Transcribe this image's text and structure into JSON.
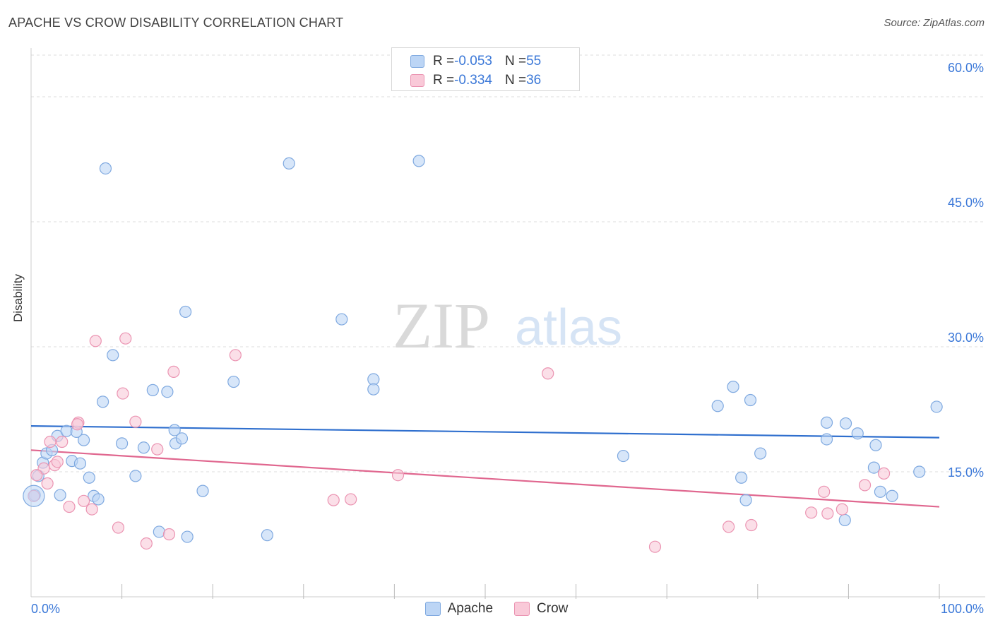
{
  "title": "APACHE VS CROW DISABILITY CORRELATION CHART",
  "source": "Source: ZipAtlas.com",
  "watermark": {
    "zip": "ZIP",
    "atlas": "atlas"
  },
  "legend_top": [
    {
      "r_label": "R = ",
      "r_value": "-0.053",
      "n_label": "N = ",
      "n_value": "55"
    },
    {
      "r_label": "R = ",
      "r_value": "-0.334",
      "n_label": "N = ",
      "n_value": "36"
    }
  ],
  "colors": {
    "apache_fill": "#bcd5f5",
    "apache_stroke": "#7fa9e0",
    "apache_line": "#2f6fce",
    "crow_fill": "#f9c9d8",
    "crow_stroke": "#eb94b2",
    "crow_line": "#e0678f",
    "axis_text": "#3b78d8",
    "grid": "#dddddd"
  },
  "chart_data": {
    "type": "scatter",
    "title": "APACHE VS CROW DISABILITY CORRELATION CHART",
    "xlabel": "",
    "ylabel": "Disability",
    "xlim": [
      0,
      100
    ],
    "ylim": [
      0,
      65
    ],
    "x_tick_labels": [
      "0.0%",
      "100.0%"
    ],
    "y_ticks": [
      15,
      30,
      45,
      60
    ],
    "y_tick_labels": [
      "15.0%",
      "30.0%",
      "45.0%",
      "60.0%"
    ],
    "series": [
      {
        "name": "Apache",
        "r": -0.053,
        "n": 55,
        "trend": {
          "x0": 0,
          "y0": 20.5,
          "x1": 100,
          "y1": 19.1
        },
        "points": [
          [
            8.2,
            51.4
          ],
          [
            28.4,
            52.0
          ],
          [
            42.7,
            52.3
          ],
          [
            17.0,
            34.2
          ],
          [
            34.2,
            33.3
          ],
          [
            9.0,
            29.0
          ],
          [
            13.4,
            24.8
          ],
          [
            15.0,
            24.6
          ],
          [
            22.3,
            25.8
          ],
          [
            37.7,
            26.1
          ],
          [
            37.7,
            24.9
          ],
          [
            7.9,
            23.4
          ],
          [
            77.3,
            25.2
          ],
          [
            75.6,
            22.9
          ],
          [
            79.2,
            23.6
          ],
          [
            1.3,
            16.1
          ],
          [
            1.7,
            17.2
          ],
          [
            2.3,
            17.6
          ],
          [
            2.9,
            19.3
          ],
          [
            3.9,
            19.9
          ],
          [
            5.0,
            19.8
          ],
          [
            5.8,
            18.8
          ],
          [
            4.5,
            16.3
          ],
          [
            5.4,
            16.0
          ],
          [
            6.4,
            14.3
          ],
          [
            10.0,
            18.4
          ],
          [
            12.4,
            17.9
          ],
          [
            15.8,
            20.0
          ],
          [
            15.9,
            18.4
          ],
          [
            16.6,
            19.0
          ],
          [
            11.5,
            14.5
          ],
          [
            0.8,
            14.5
          ],
          [
            0.4,
            12.2
          ],
          [
            3.2,
            12.2
          ],
          [
            6.9,
            12.1
          ],
          [
            7.4,
            11.7
          ],
          [
            18.9,
            12.7
          ],
          [
            14.1,
            7.8
          ],
          [
            17.2,
            7.2
          ],
          [
            26.0,
            7.4
          ],
          [
            65.2,
            16.9
          ],
          [
            80.3,
            17.2
          ],
          [
            87.6,
            20.9
          ],
          [
            89.7,
            20.8
          ],
          [
            91.0,
            19.6
          ],
          [
            87.6,
            18.9
          ],
          [
            93.0,
            18.2
          ],
          [
            92.8,
            15.5
          ],
          [
            97.8,
            15.0
          ],
          [
            78.2,
            14.3
          ],
          [
            93.5,
            12.6
          ],
          [
            94.8,
            12.1
          ],
          [
            78.7,
            11.6
          ],
          [
            89.6,
            9.2
          ],
          [
            99.7,
            22.8
          ]
        ]
      },
      {
        "name": "Crow",
        "r": -0.334,
        "n": 36,
        "trend": {
          "x0": 0,
          "y0": 17.6,
          "x1": 100,
          "y1": 10.8
        },
        "points": [
          [
            7.1,
            30.7
          ],
          [
            10.4,
            31.0
          ],
          [
            22.5,
            29.0
          ],
          [
            15.7,
            27.0
          ],
          [
            10.1,
            24.4
          ],
          [
            11.5,
            21.0
          ],
          [
            5.2,
            20.9
          ],
          [
            5.1,
            20.7
          ],
          [
            2.1,
            18.6
          ],
          [
            3.4,
            18.6
          ],
          [
            13.9,
            17.7
          ],
          [
            2.6,
            15.8
          ],
          [
            2.9,
            16.2
          ],
          [
            1.4,
            15.4
          ],
          [
            0.6,
            14.6
          ],
          [
            1.8,
            13.6
          ],
          [
            4.2,
            10.8
          ],
          [
            5.8,
            11.5
          ],
          [
            6.7,
            10.5
          ],
          [
            9.6,
            8.3
          ],
          [
            12.7,
            6.4
          ],
          [
            15.2,
            7.5
          ],
          [
            33.3,
            11.6
          ],
          [
            35.2,
            11.7
          ],
          [
            40.4,
            14.6
          ],
          [
            56.9,
            26.8
          ],
          [
            68.7,
            6.0
          ],
          [
            76.8,
            8.4
          ],
          [
            79.3,
            8.6
          ],
          [
            85.9,
            10.1
          ],
          [
            87.3,
            12.6
          ],
          [
            87.7,
            10.0
          ],
          [
            89.3,
            10.5
          ],
          [
            91.8,
            13.4
          ],
          [
            93.9,
            14.8
          ],
          [
            0.3,
            12.1
          ]
        ]
      }
    ]
  },
  "bottom_legend": [
    {
      "label": "Apache"
    },
    {
      "label": "Crow"
    }
  ]
}
